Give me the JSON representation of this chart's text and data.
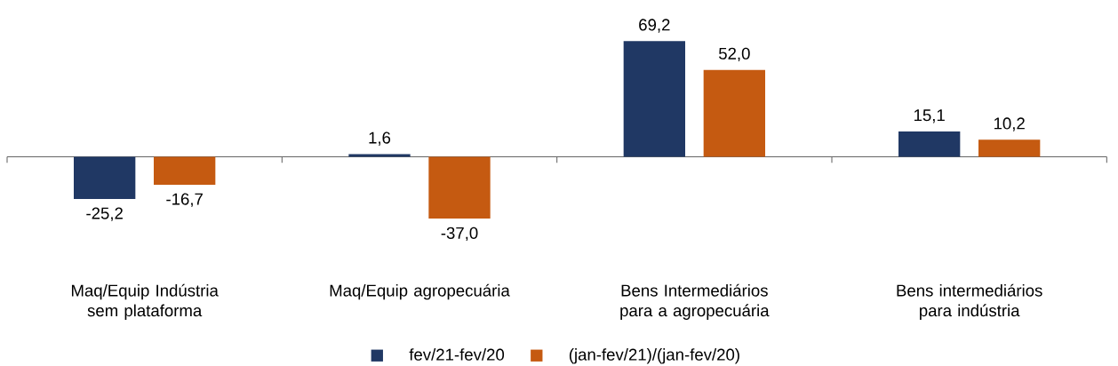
{
  "chart_data": {
    "type": "bar",
    "categories": [
      "Maq/Equip Indústria sem plataforma",
      "Maq/Equip agropecuária",
      "Bens Intermediários para a agropecuária",
      "Bens intermediários para indústria"
    ],
    "series": [
      {
        "name": "fev/21-fev/20",
        "color": "#203864",
        "values": [
          -25.2,
          1.6,
          69.2,
          15.1
        ],
        "value_labels": [
          "-25,2",
          "1,6",
          "69,2",
          "15,1"
        ]
      },
      {
        "name": "(jan-fev/21)/(jan-fev/20)",
        "color": "#c55a11",
        "values": [
          -16.7,
          -37.0,
          52.0,
          10.2
        ],
        "value_labels": [
          "-16,7",
          "-37,0",
          "52,0",
          "10,2"
        ]
      }
    ],
    "legend": "bottom"
  }
}
